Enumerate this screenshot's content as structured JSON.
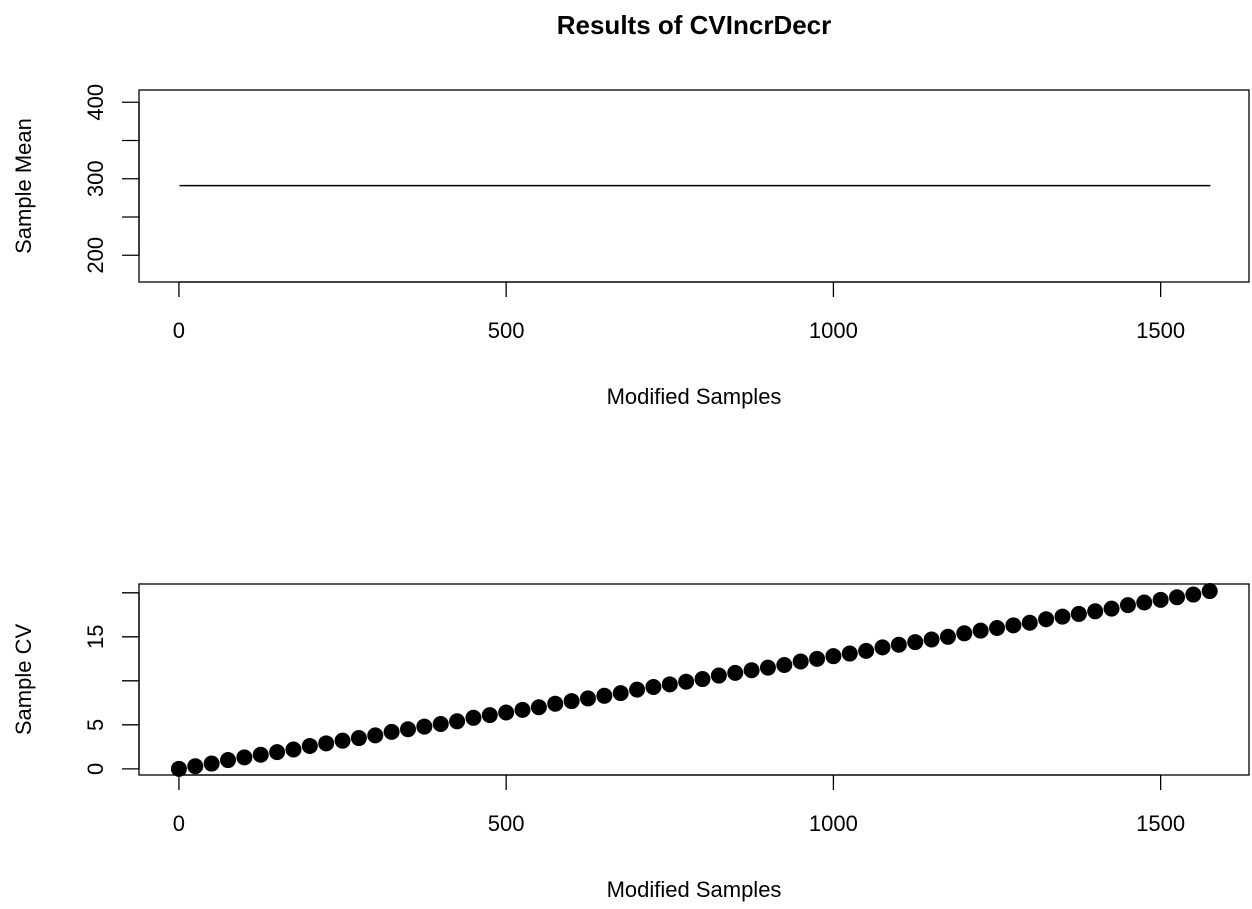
{
  "title": "Results of CVIncrDecr",
  "chart_data": [
    {
      "type": "line",
      "xlabel": "Modified Samples",
      "ylabel": "Sample Mean",
      "x": [
        1,
        1576
      ],
      "values": [
        291,
        291
      ],
      "color": "#000000",
      "xlim": [
        -61,
        1635
      ],
      "ylim": [
        165,
        416
      ],
      "xticks": [
        0,
        500,
        1000,
        1500
      ],
      "yticks": [
        200,
        300,
        400
      ],
      "yminorticks": [
        250,
        350
      ]
    },
    {
      "type": "scatter",
      "xlabel": "Modified Samples",
      "ylabel": "Sample CV",
      "x": [
        0,
        25,
        50,
        75,
        100,
        125,
        150,
        175,
        200,
        225,
        250,
        275,
        300,
        325,
        350,
        375,
        400,
        425,
        450,
        475,
        500,
        525,
        550,
        575,
        600,
        625,
        650,
        675,
        700,
        725,
        750,
        775,
        800,
        825,
        850,
        875,
        900,
        925,
        950,
        975,
        1000,
        1025,
        1050,
        1075,
        1100,
        1125,
        1150,
        1175,
        1200,
        1225,
        1250,
        1275,
        1300,
        1325,
        1350,
        1375,
        1400,
        1425,
        1450,
        1475,
        1500,
        1525,
        1550,
        1575
      ],
      "values": [
        0,
        0.3,
        0.6,
        1.0,
        1.3,
        1.6,
        1.9,
        2.2,
        2.6,
        2.9,
        3.2,
        3.5,
        3.8,
        4.2,
        4.5,
        4.8,
        5.1,
        5.4,
        5.8,
        6.1,
        6.4,
        6.7,
        7.0,
        7.4,
        7.7,
        8.0,
        8.3,
        8.6,
        9.0,
        9.3,
        9.6,
        9.9,
        10.2,
        10.6,
        10.9,
        11.2,
        11.5,
        11.8,
        12.2,
        12.5,
        12.8,
        13.1,
        13.4,
        13.8,
        14.1,
        14.4,
        14.7,
        15.0,
        15.4,
        15.7,
        16.0,
        16.3,
        16.6,
        17.0,
        17.3,
        17.6,
        17.9,
        18.2,
        18.6,
        18.9,
        19.2,
        19.5,
        19.8,
        20.2
      ],
      "color": "#000000",
      "xlim": [
        -61,
        1635
      ],
      "ylim": [
        -0.7,
        21.0
      ],
      "xticks": [
        0,
        500,
        1000,
        1500
      ],
      "yticks": [
        0,
        5,
        15
      ],
      "yminorticks": [
        10,
        20
      ]
    }
  ]
}
